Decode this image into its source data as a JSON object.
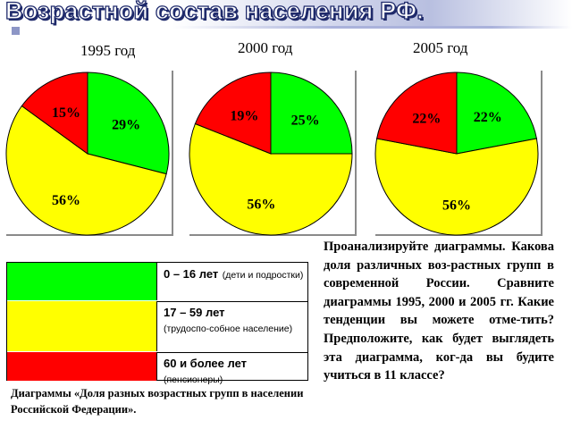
{
  "page": {
    "title": "Возрастной состав населения РФ.",
    "task_text": "Проанализируйте диаграммы. Какова доля различных воз-растных групп в современной России. Сравните диаграммы 1995, 2000 и 2005 гг. Какие тенденции вы можете отме-тить? Предположите, как будет выглядеть эта диаграмма, ког-да вы будите учиться в 11 классе?",
    "caption": "Диаграммы «Доля разных возрастных групп в населении Российской Федерации»."
  },
  "legend": [
    {
      "label": "0 – 16 лет",
      "note": "(дети и подростки)",
      "color": "#00ff00"
    },
    {
      "label": "17 – 59 лет",
      "note": "(трудоспо-собное население)",
      "color": "#ffff00"
    },
    {
      "label": "60 и более лет",
      "note": "(пенсионеры)",
      "color": "#ff0000"
    }
  ],
  "chart_data": [
    {
      "type": "pie",
      "title": "1995 год",
      "slices": [
        {
          "category": "0 – 16 лет",
          "value": 29,
          "label": "29%",
          "color": "#00ff00"
        },
        {
          "category": "17 – 59 лет",
          "value": 56,
          "label": "56%",
          "color": "#ffff00"
        },
        {
          "category": "60 и более лет",
          "value": 15,
          "label": "15%",
          "color": "#ff0000"
        }
      ]
    },
    {
      "type": "pie",
      "title": "2000 год",
      "slices": [
        {
          "category": "0 – 16 лет",
          "value": 25,
          "label": "25%",
          "color": "#00ff00"
        },
        {
          "category": "17 – 59 лет",
          "value": 56,
          "label": "56%",
          "color": "#ffff00"
        },
        {
          "category": "60 и более лет",
          "value": 19,
          "label": "19%",
          "color": "#ff0000"
        }
      ]
    },
    {
      "type": "pie",
      "title": "2005 год",
      "slices": [
        {
          "category": "0 – 16 лет",
          "value": 22,
          "label": "22%",
          "color": "#00ff00"
        },
        {
          "category": "17 – 59 лет",
          "value": 56,
          "label": "56%",
          "color": "#ffff00"
        },
        {
          "category": "60 и более лет",
          "value": 22,
          "label": "22%",
          "color": "#ff0000"
        }
      ]
    }
  ]
}
